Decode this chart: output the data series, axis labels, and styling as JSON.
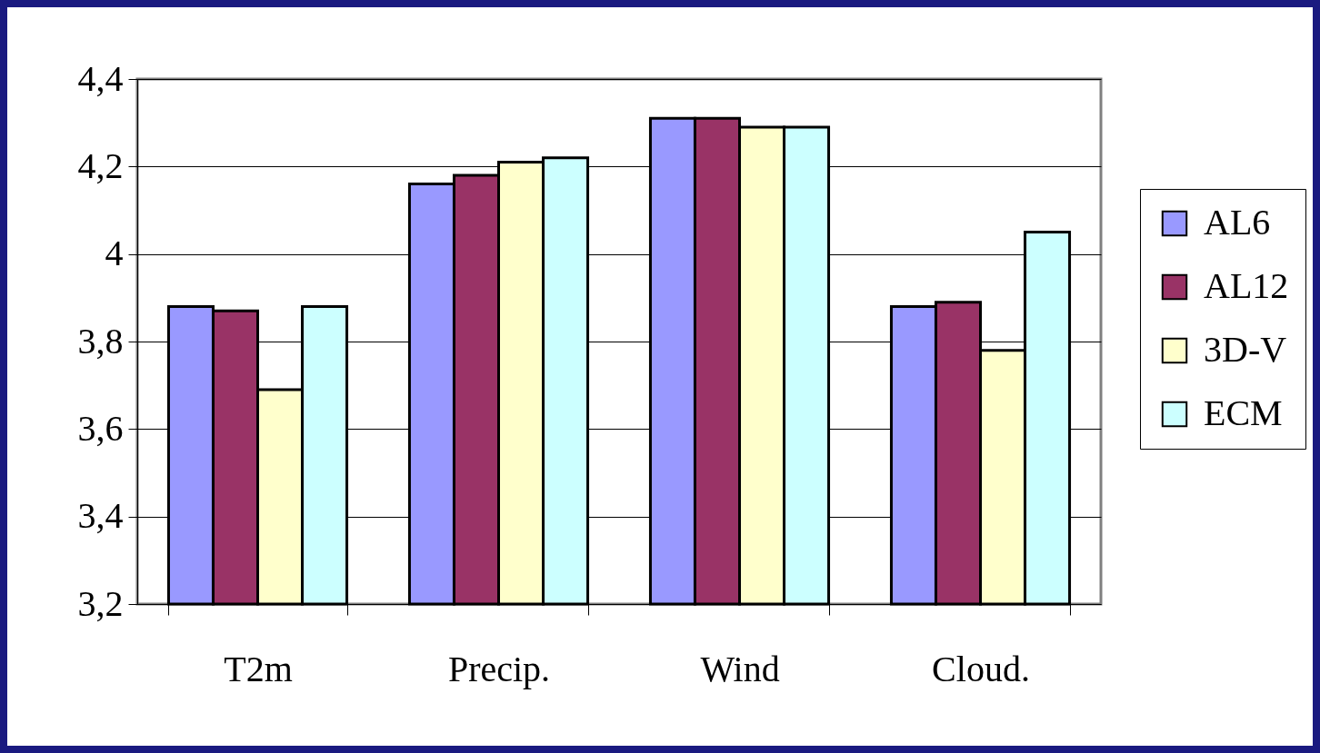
{
  "chart_data": {
    "type": "bar",
    "categories": [
      "T2m",
      "Precip.",
      "Wind",
      "Cloud."
    ],
    "series": [
      {
        "name": "AL6",
        "color": "#9999ff",
        "values": [
          3.88,
          4.16,
          4.31,
          3.88
        ]
      },
      {
        "name": "AL12",
        "color": "#993366",
        "values": [
          3.87,
          4.18,
          4.31,
          3.89
        ]
      },
      {
        "name": "3D-V",
        "color": "#ffffcc",
        "values": [
          3.69,
          4.21,
          4.29,
          3.78
        ]
      },
      {
        "name": "ECM",
        "color": "#ccffff",
        "values": [
          3.88,
          4.22,
          4.29,
          4.05
        ]
      }
    ],
    "ylim": [
      3.2,
      4.4
    ],
    "yticks": [
      {
        "value": 3.2,
        "label": "3,2"
      },
      {
        "value": 3.4,
        "label": "3,4"
      },
      {
        "value": 3.6,
        "label": "3,6"
      },
      {
        "value": 3.8,
        "label": "3,8"
      },
      4,
      {
        "value": 4.2,
        "label": "4,2"
      },
      {
        "value": 4.4,
        "label": "4,4"
      }
    ],
    "grid": "y",
    "legend": "right"
  }
}
